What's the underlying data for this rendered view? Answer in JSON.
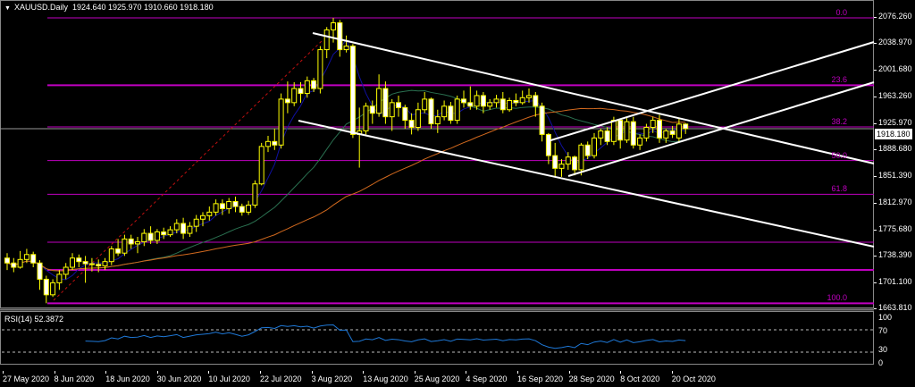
{
  "header": {
    "symbol": "XAUUSD.Daily",
    "ohlc_text": "1924.640 1925.970 1910.660 1918.180"
  },
  "price_axis": {
    "ticks": [
      "2076.260",
      "2038.970",
      "2001.680",
      "1963.260",
      "1925.970",
      "1888.680",
      "1851.390",
      "1812.970",
      "1775.680",
      "1738.390",
      "1701.100",
      "1663.810"
    ],
    "current_price": "1918.180"
  },
  "fibonacci": {
    "color": "#c000c0",
    "levels": [
      {
        "label": "0.0",
        "price": 2075.0
      },
      {
        "label": "23.6",
        "price": 1979.6
      },
      {
        "label": "38.2",
        "price": 1920.6
      },
      {
        "label": "50.0",
        "price": 1873.0
      },
      {
        "label": "61.8",
        "price": 1825.3
      },
      {
        "label": "",
        "price": 1757.4
      },
      {
        "label": "",
        "price": 1718.2
      },
      {
        "label": "100.0",
        "price": 1671.0
      }
    ]
  },
  "date_axis": [
    "27 May 2020",
    "8 Jun 2020",
    "18 Jun 2020",
    "30 Jun 2020",
    "10 Jul 2020",
    "22 Jul 2020",
    "3 Aug 2020",
    "13 Aug 2020",
    "25 Aug 2020",
    "4 Sep 2020",
    "16 Sep 2020",
    "28 Sep 2020",
    "8 Oct 2020",
    "20 Oct 2020"
  ],
  "rsi": {
    "title": "RSI(14) 52.3872",
    "ticks": [
      "100",
      "70",
      "30",
      "0"
    ],
    "color": "#1e78d7"
  },
  "colors": {
    "candle": "#ffff00",
    "bear_fill": "#ffffff",
    "ma_fast": "#1010a0",
    "ma_mid": "#2a7050",
    "ma_slow": "#d2691e",
    "trendline": "#ffffff"
  },
  "chart_data": {
    "type": "candlestick",
    "ylim": [
      1663.81,
      2076.26
    ],
    "ohlc": [
      [
        1735,
        1742,
        1718,
        1728
      ],
      [
        1728,
        1735,
        1715,
        1722
      ],
      [
        1722,
        1745,
        1720,
        1733
      ],
      [
        1733,
        1748,
        1728,
        1740
      ],
      [
        1740,
        1744,
        1722,
        1728
      ],
      [
        1728,
        1732,
        1690,
        1705
      ],
      [
        1705,
        1710,
        1671,
        1683
      ],
      [
        1683,
        1705,
        1680,
        1700
      ],
      [
        1700,
        1718,
        1690,
        1712
      ],
      [
        1712,
        1728,
        1705,
        1722
      ],
      [
        1722,
        1742,
        1718,
        1735
      ],
      [
        1735,
        1740,
        1722,
        1730
      ],
      [
        1730,
        1738,
        1700,
        1727
      ],
      [
        1727,
        1735,
        1716,
        1726
      ],
      [
        1726,
        1733,
        1715,
        1724
      ],
      [
        1724,
        1735,
        1718,
        1730
      ],
      [
        1730,
        1752,
        1725,
        1748
      ],
      [
        1748,
        1762,
        1738,
        1742
      ],
      [
        1742,
        1768,
        1738,
        1762
      ],
      [
        1762,
        1768,
        1748,
        1755
      ],
      [
        1755,
        1765,
        1742,
        1758
      ],
      [
        1758,
        1776,
        1752,
        1770
      ],
      [
        1770,
        1780,
        1755,
        1760
      ],
      [
        1760,
        1776,
        1755,
        1772
      ],
      [
        1772,
        1778,
        1762,
        1768
      ],
      [
        1768,
        1780,
        1765,
        1775
      ],
      [
        1775,
        1790,
        1770,
        1784
      ],
      [
        1784,
        1792,
        1762,
        1770
      ],
      [
        1770,
        1786,
        1765,
        1780
      ],
      [
        1780,
        1796,
        1772,
        1790
      ],
      [
        1790,
        1800,
        1780,
        1795
      ],
      [
        1795,
        1808,
        1788,
        1800
      ],
      [
        1800,
        1818,
        1795,
        1812
      ],
      [
        1812,
        1818,
        1796,
        1805
      ],
      [
        1805,
        1820,
        1798,
        1815
      ],
      [
        1815,
        1822,
        1800,
        1808
      ],
      [
        1808,
        1812,
        1795,
        1800
      ],
      [
        1800,
        1816,
        1796,
        1810
      ],
      [
        1810,
        1845,
        1806,
        1840
      ],
      [
        1840,
        1898,
        1838,
        1893
      ],
      [
        1893,
        1908,
        1885,
        1900
      ],
      [
        1900,
        1918,
        1888,
        1895
      ],
      [
        1895,
        1968,
        1890,
        1960
      ],
      [
        1960,
        1985,
        1940,
        1955
      ],
      [
        1955,
        1984,
        1950,
        1975
      ],
      [
        1975,
        1984,
        1955,
        1968
      ],
      [
        1968,
        1992,
        1962,
        1986
      ],
      [
        1986,
        1990,
        1970,
        1975
      ],
      [
        1975,
        2035,
        1968,
        2030
      ],
      [
        2030,
        2062,
        2018,
        2058
      ],
      [
        2058,
        2075,
        2040,
        2068
      ],
      [
        2068,
        2072,
        2020,
        2030
      ],
      [
        2030,
        2050,
        2026,
        2035
      ],
      [
        2035,
        2038,
        1905,
        1910
      ],
      [
        1910,
        1948,
        1863,
        1915
      ],
      [
        1915,
        1955,
        1910,
        1950
      ],
      [
        1950,
        1958,
        1925,
        1940
      ],
      [
        1940,
        1995,
        1935,
        1975
      ],
      [
        1975,
        1985,
        1925,
        1935
      ],
      [
        1935,
        1960,
        1915,
        1955
      ],
      [
        1955,
        1965,
        1935,
        1948
      ],
      [
        1948,
        1952,
        1918,
        1930
      ],
      [
        1930,
        1940,
        1910,
        1920
      ],
      [
        1920,
        1955,
        1915,
        1945
      ],
      [
        1945,
        1970,
        1940,
        1960
      ],
      [
        1960,
        1962,
        1918,
        1925
      ],
      [
        1925,
        1945,
        1912,
        1935
      ],
      [
        1935,
        1958,
        1930,
        1950
      ],
      [
        1950,
        1956,
        1925,
        1930
      ],
      [
        1930,
        1965,
        1925,
        1960
      ],
      [
        1960,
        1972,
        1948,
        1955
      ],
      [
        1955,
        1978,
        1945,
        1950
      ],
      [
        1950,
        1972,
        1945,
        1965
      ],
      [
        1965,
        1970,
        1940,
        1950
      ],
      [
        1950,
        1960,
        1945,
        1955
      ],
      [
        1955,
        1966,
        1948,
        1960
      ],
      [
        1960,
        1970,
        1940,
        1945
      ],
      [
        1945,
        1962,
        1942,
        1958
      ],
      [
        1958,
        1968,
        1950,
        1955
      ],
      [
        1955,
        1972,
        1952,
        1962
      ],
      [
        1962,
        1975,
        1955,
        1965
      ],
      [
        1965,
        1970,
        1935,
        1950
      ],
      [
        1950,
        1955,
        1900,
        1910
      ],
      [
        1910,
        1912,
        1868,
        1880
      ],
      [
        1880,
        1898,
        1850,
        1862
      ],
      [
        1862,
        1875,
        1850,
        1868
      ],
      [
        1868,
        1885,
        1860,
        1878
      ],
      [
        1878,
        1880,
        1852,
        1860
      ],
      [
        1860,
        1898,
        1852,
        1895
      ],
      [
        1895,
        1900,
        1875,
        1880
      ],
      [
        1880,
        1912,
        1876,
        1905
      ],
      [
        1905,
        1918,
        1895,
        1915
      ],
      [
        1915,
        1920,
        1895,
        1900
      ],
      [
        1900,
        1935,
        1895,
        1930
      ],
      [
        1930,
        1932,
        1890,
        1902
      ],
      [
        1902,
        1933,
        1898,
        1928
      ],
      [
        1928,
        1935,
        1890,
        1895
      ],
      [
        1895,
        1910,
        1888,
        1905
      ],
      [
        1905,
        1925,
        1900,
        1920
      ],
      [
        1920,
        1935,
        1912,
        1930
      ],
      [
        1930,
        1938,
        1898,
        1905
      ],
      [
        1905,
        1918,
        1898,
        1915
      ],
      [
        1915,
        1922,
        1905,
        1910
      ],
      [
        1905,
        1932,
        1898,
        1924.64
      ],
      [
        1924.64,
        1925.97,
        1910.66,
        1918.18
      ]
    ]
  }
}
